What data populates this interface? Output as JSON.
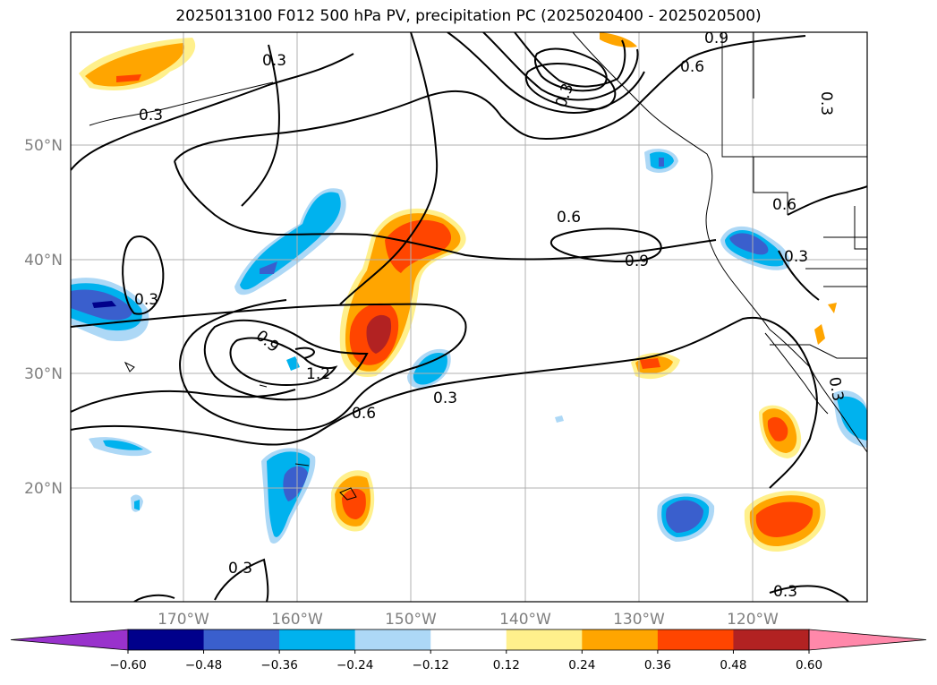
{
  "title": "2025013100 F012 500 hPa PV, precipitation PC (2025020400 - 2025020500)",
  "map": {
    "lon_labels": [
      "170°W",
      "160°W",
      "150°W",
      "140°W",
      "130°W",
      "120°W"
    ],
    "lat_labels": [
      "50°N",
      "40°N",
      "30°N",
      "20°N"
    ],
    "contour_labels": [
      "0.3",
      "0.3",
      "0.3",
      "0.3",
      "0.3",
      "0.3",
      "0.3",
      "0.3",
      "0.6",
      "0.6",
      "0.6",
      "0.6",
      "0.9",
      "0.9",
      "0.9",
      "1.2",
      "0.3",
      "0.3"
    ],
    "gridlines": true
  },
  "colorbar": {
    "labels": [
      "−0.60",
      "−0.48",
      "−0.36",
      "−0.24",
      "−0.12",
      "0.12",
      "0.24",
      "0.36",
      "0.48",
      "0.60"
    ],
    "colors": [
      "#9932cc",
      "#00008b",
      "#3a5fcd",
      "#00b2ee",
      "#add8f6",
      "#ffffff",
      "#fff08c",
      "#ffa500",
      "#ff4500",
      "#b22222",
      "#ff88aa"
    ]
  }
}
